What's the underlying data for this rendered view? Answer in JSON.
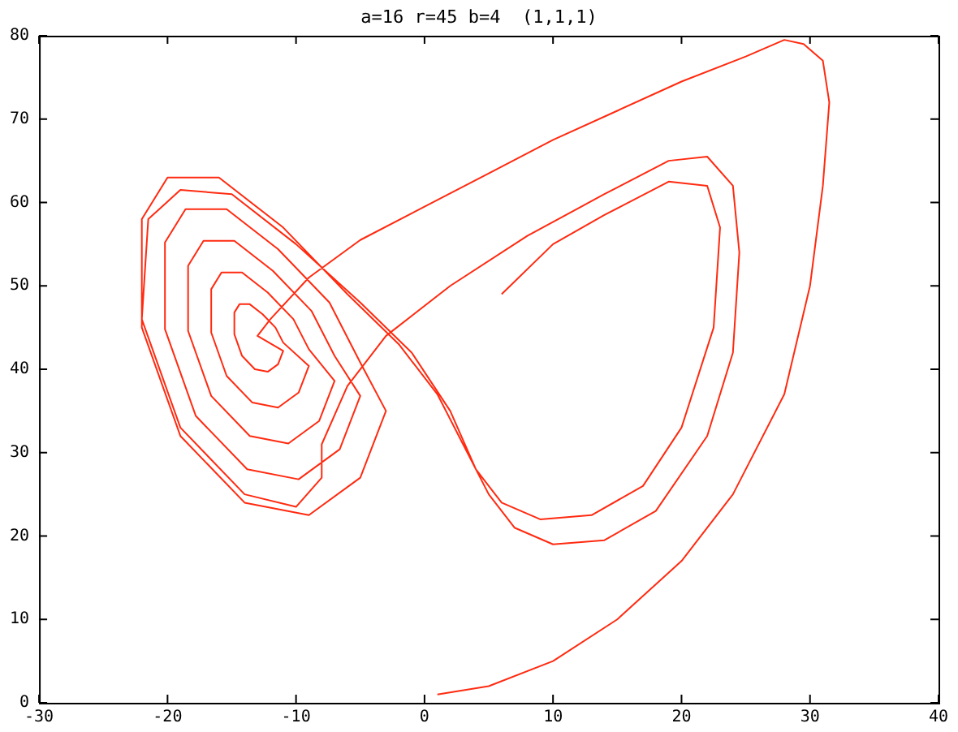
{
  "chart_data": {
    "type": "line",
    "title": "a=16 r=45 b=4  (1,1,1)",
    "xlim": [
      -30,
      40
    ],
    "ylim": [
      0,
      80
    ],
    "xticks": [
      -30,
      -20,
      -10,
      0,
      10,
      20,
      30,
      40
    ],
    "yticks": [
      0,
      10,
      20,
      30,
      40,
      50,
      60,
      70,
      80
    ],
    "grid": false,
    "legend": false,
    "marker": "none",
    "line_style": "solid",
    "series": [
      {
        "color": "#ff2a10",
        "x": [
          1,
          5,
          10,
          15,
          20,
          24,
          28,
          30,
          31,
          31.5,
          31,
          29.5,
          28,
          25,
          20,
          15,
          10,
          5,
          0,
          -5,
          -9,
          -12,
          -13,
          -11,
          -11.4,
          -12.2,
          -13.2,
          -14.2,
          -14.8,
          -14.8,
          -14.4,
          -13.6,
          -12.6,
          -11.6,
          -11,
          -9,
          -9.8,
          -11.4,
          -13.4,
          -15.4,
          -16.6,
          -16.6,
          -15.8,
          -14.2,
          -12.2,
          -10.2,
          -9,
          -7,
          -8.2,
          -10.6,
          -13.6,
          -16.6,
          -18.4,
          -18.4,
          -17.2,
          -14.8,
          -11.8,
          -8.8,
          -7,
          -5,
          -6.6,
          -9.8,
          -13.8,
          -17.8,
          -20.2,
          -20.2,
          -18.6,
          -15.4,
          -11.4,
          -7.4,
          -5,
          -3,
          -5,
          -9,
          -14,
          -19,
          -22,
          -22,
          -20,
          -16,
          -11,
          -6,
          -2,
          1,
          3,
          5,
          7,
          10,
          14,
          18,
          22,
          24,
          24.5,
          24,
          22,
          19,
          14,
          8,
          2,
          -3,
          -6,
          -8,
          -8,
          -10,
          -14,
          -19,
          -22,
          -21.5,
          -19,
          -15,
          -10,
          -5,
          -1,
          2,
          4,
          6,
          9,
          13,
          17,
          20,
          22.5,
          23,
          22,
          19,
          14,
          10,
          6
        ],
        "values": [
          1,
          2,
          5,
          10,
          17,
          25,
          37,
          50,
          62,
          72,
          77,
          79,
          79.5,
          77.5,
          74.5,
          71,
          67.5,
          63.5,
          59.5,
          55.5,
          51,
          46,
          44,
          42.2,
          40.6,
          39.7,
          40,
          41.6,
          44.2,
          46.8,
          47.8,
          47.8,
          46.6,
          45,
          43.2,
          40.4,
          37.2,
          35.4,
          36,
          39.2,
          44.4,
          49.6,
          51.6,
          51.6,
          49.2,
          46,
          42.4,
          38.6,
          33.8,
          31.1,
          32,
          36.8,
          44.6,
          52.4,
          55.4,
          55.4,
          51.8,
          47,
          41.6,
          36.8,
          30.4,
          26.8,
          28,
          34.4,
          44.8,
          55.2,
          59.2,
          59.2,
          54.4,
          48,
          40.8,
          35,
          27,
          22.5,
          24,
          32,
          45,
          58,
          63,
          63,
          57,
          49,
          43,
          37,
          31,
          25,
          21,
          19,
          19.5,
          23,
          32,
          42,
          54,
          62,
          65.5,
          65,
          61,
          56,
          50,
          44,
          38,
          31,
          27,
          23.5,
          25,
          33,
          46,
          58,
          61.5,
          61,
          55,
          48,
          42,
          35,
          28,
          24,
          22,
          22.5,
          26,
          33,
          45,
          57,
          62,
          62.5,
          58.5,
          55,
          49
        ]
      }
    ]
  }
}
